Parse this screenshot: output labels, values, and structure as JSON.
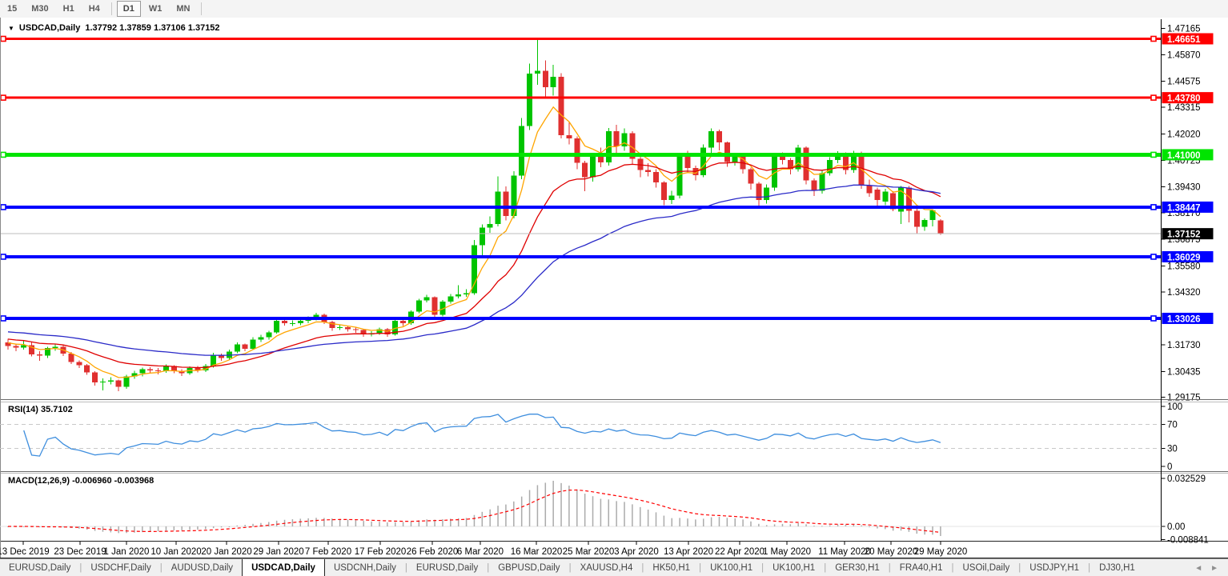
{
  "toolbar": {
    "buttons": [
      {
        "label": "15",
        "active": false
      },
      {
        "label": "M30",
        "active": false
      },
      {
        "label": "H1",
        "active": false
      },
      {
        "label": "H4",
        "active": false
      },
      {
        "label": "D1",
        "active": true
      },
      {
        "label": "W1",
        "active": false
      },
      {
        "label": "MN",
        "active": false
      }
    ]
  },
  "chart_header": {
    "dropdown_icon": "▼",
    "symbol": "USDCAD,Daily",
    "ohlc": "1.37792 1.37859 1.37106 1.37152"
  },
  "rsi_panel_label": "RSI(14) 35.7102",
  "macd_panel_label": "MACD(12,26,9) -0.006960 -0.003968",
  "tabs": {
    "items": [
      "EURUSD,Daily",
      "USDCHF,Daily",
      "AUDUSD,Daily",
      "USDCAD,Daily",
      "USDCNH,Daily",
      "EURUSD,Daily",
      "GBPUSD,Daily",
      "XAUUSD,H4",
      "HK50,H1",
      "UK100,H1",
      "UK100,H1",
      "GER30,H1",
      "FRA40,H1",
      "USOil,Daily",
      "USDJPY,H1",
      "DJ30,H1"
    ],
    "active_index": 3,
    "scroll_left_icon": "◄",
    "scroll_right_icon": "►"
  },
  "chart_data": {
    "type": "candlestick",
    "symbol": "USDCAD",
    "timeframe": "Daily",
    "last_bar": {
      "open": 1.37792,
      "high": 1.37859,
      "low": 1.37106,
      "close": 1.37152
    },
    "current_price": 1.37152,
    "bull_color": "#00c400",
    "bear_color": "#e03030",
    "price_line_color": "#bdbdbd",
    "y_ticks": [
      1.47165,
      1.4587,
      1.44575,
      1.43315,
      1.4202,
      1.40725,
      1.3943,
      1.3817,
      1.36875,
      1.3558,
      1.3432,
      1.3173,
      1.30435,
      1.29175
    ],
    "x_ticks": [
      {
        "label": "13 Dec 2019",
        "x": 29
      },
      {
        "label": "23 Dec 2019",
        "x": 100
      },
      {
        "label": "1 Jan 2020",
        "x": 158
      },
      {
        "label": "10 Jan 2020",
        "x": 220
      },
      {
        "label": "20 Jan 2020",
        "x": 283
      },
      {
        "label": "29 Jan 2020",
        "x": 348
      },
      {
        "label": "7 Feb 2020",
        "x": 410
      },
      {
        "label": "17 Feb 2020",
        "x": 475
      },
      {
        "label": "26 Feb 2020",
        "x": 540
      },
      {
        "label": "6 Mar 2020",
        "x": 600
      },
      {
        "label": "16 Mar 2020",
        "x": 670
      },
      {
        "label": "25 Mar 2020",
        "x": 735
      },
      {
        "label": "3 Apr 2020",
        "x": 795
      },
      {
        "label": "13 Apr 2020",
        "x": 860
      },
      {
        "label": "22 Apr 2020",
        "x": 924
      },
      {
        "label": "1 May 2020",
        "x": 983
      },
      {
        "label": "11 May 2020",
        "x": 1055
      },
      {
        "label": "20 May 2020",
        "x": 1113
      },
      {
        "label": "29 May 2020",
        "x": 1175
      }
    ],
    "hlines": [
      {
        "value": 1.46651,
        "color": "#ff0000",
        "width": 3
      },
      {
        "value": 1.4378,
        "color": "#ff0000",
        "width": 3
      },
      {
        "value": 1.41,
        "color": "#00e400",
        "width": 5
      },
      {
        "value": 1.38447,
        "color": "#0000ff",
        "width": 4
      },
      {
        "value": 1.36029,
        "color": "#0000ff",
        "width": 4
      },
      {
        "value": 1.33026,
        "color": "#0000ff",
        "width": 4
      }
    ],
    "moving_averages": [
      {
        "name": "fast",
        "period": 6,
        "seed": 1.319,
        "color": "#ffa500"
      },
      {
        "name": "medium",
        "period": 19,
        "seed": 1.3205,
        "color": "#df0000"
      },
      {
        "name": "slow",
        "period": 48,
        "seed": 1.324,
        "color": "#2a2ac8"
      }
    ],
    "candles": [
      [
        1.3185,
        1.3204,
        1.3151,
        1.3168
      ],
      [
        1.3168,
        1.318,
        1.3143,
        1.316
      ],
      [
        1.316,
        1.3197,
        1.315,
        1.3172
      ],
      [
        1.3172,
        1.3186,
        1.3118,
        1.3128
      ],
      [
        1.3128,
        1.3143,
        1.3095,
        1.3122
      ],
      [
        1.3122,
        1.3165,
        1.311,
        1.3158
      ],
      [
        1.3158,
        1.318,
        1.3145,
        1.3165
      ],
      [
        1.3165,
        1.3172,
        1.312,
        1.313
      ],
      [
        1.313,
        1.3138,
        1.308,
        1.309
      ],
      [
        1.309,
        1.3098,
        1.306,
        1.3075
      ],
      [
        1.3075,
        1.308,
        1.3028,
        1.304
      ],
      [
        1.304,
        1.3045,
        1.2975,
        1.299
      ],
      [
        1.299,
        1.301,
        1.2952,
        1.2995
      ],
      [
        1.2995,
        1.3015,
        1.298,
        1.3
      ],
      [
        1.3,
        1.3005,
        1.2948,
        1.297
      ],
      [
        1.297,
        1.3028,
        1.296,
        1.302
      ],
      [
        1.302,
        1.3048,
        1.3008,
        1.3035
      ],
      [
        1.3035,
        1.3062,
        1.302,
        1.3055
      ],
      [
        1.3055,
        1.3065,
        1.3036,
        1.305
      ],
      [
        1.305,
        1.306,
        1.303,
        1.3045
      ],
      [
        1.3045,
        1.3078,
        1.3038,
        1.307
      ],
      [
        1.307,
        1.3075,
        1.3035,
        1.3045
      ],
      [
        1.3045,
        1.3055,
        1.3022,
        1.3035
      ],
      [
        1.3035,
        1.3068,
        1.3028,
        1.306
      ],
      [
        1.306,
        1.307,
        1.304,
        1.305
      ],
      [
        1.305,
        1.308,
        1.3042,
        1.307
      ],
      [
        1.307,
        1.3135,
        1.3063,
        1.3125
      ],
      [
        1.3125,
        1.313,
        1.3095,
        1.311
      ],
      [
        1.311,
        1.315,
        1.3102,
        1.314
      ],
      [
        1.314,
        1.3185,
        1.3132,
        1.3175
      ],
      [
        1.3175,
        1.318,
        1.3142,
        1.3155
      ],
      [
        1.3155,
        1.321,
        1.3148,
        1.32
      ],
      [
        1.32,
        1.3222,
        1.3188,
        1.321
      ],
      [
        1.321,
        1.3242,
        1.32,
        1.3235
      ],
      [
        1.3235,
        1.3298,
        1.3228,
        1.329
      ],
      [
        1.329,
        1.3302,
        1.3268,
        1.328
      ],
      [
        1.328,
        1.3292,
        1.3266,
        1.328
      ],
      [
        1.328,
        1.33,
        1.327,
        1.329
      ],
      [
        1.329,
        1.3312,
        1.328,
        1.33
      ],
      [
        1.33,
        1.333,
        1.3292,
        1.332
      ],
      [
        1.332,
        1.3325,
        1.3275,
        1.3285
      ],
      [
        1.3285,
        1.329,
        1.3242,
        1.3255
      ],
      [
        1.3255,
        1.3272,
        1.3245,
        1.326
      ],
      [
        1.326,
        1.3268,
        1.3238,
        1.325
      ],
      [
        1.325,
        1.3262,
        1.3232,
        1.3245
      ],
      [
        1.3245,
        1.325,
        1.3212,
        1.3225
      ],
      [
        1.3225,
        1.324,
        1.3215,
        1.323
      ],
      [
        1.323,
        1.3258,
        1.3222,
        1.325
      ],
      [
        1.325,
        1.3255,
        1.3212,
        1.3225
      ],
      [
        1.3225,
        1.3298,
        1.3218,
        1.329
      ],
      [
        1.329,
        1.33,
        1.3265,
        1.328
      ],
      [
        1.328,
        1.3342,
        1.3272,
        1.3335
      ],
      [
        1.3335,
        1.3398,
        1.3328,
        1.339
      ],
      [
        1.339,
        1.3418,
        1.338,
        1.3405
      ],
      [
        1.3405,
        1.341,
        1.3305,
        1.332
      ],
      [
        1.332,
        1.3392,
        1.3312,
        1.3385
      ],
      [
        1.3385,
        1.3422,
        1.3375,
        1.341
      ],
      [
        1.341,
        1.3465,
        1.34,
        1.342
      ],
      [
        1.342,
        1.3445,
        1.3408,
        1.3425
      ],
      [
        1.3425,
        1.3685,
        1.3418,
        1.366
      ],
      [
        1.366,
        1.376,
        1.3605,
        1.3745
      ],
      [
        1.3745,
        1.38,
        1.372,
        1.3762
      ],
      [
        1.3762,
        1.3995,
        1.375,
        1.392
      ],
      [
        1.392,
        1.3945,
        1.378,
        1.3802
      ],
      [
        1.3802,
        1.402,
        1.379,
        1.3998
      ],
      [
        1.3998,
        1.428,
        1.398,
        1.424
      ],
      [
        1.424,
        1.4545,
        1.422,
        1.4496
      ],
      [
        1.4496,
        1.4668,
        1.444,
        1.451
      ],
      [
        1.451,
        1.456,
        1.438,
        1.443
      ],
      [
        1.443,
        1.4538,
        1.4388,
        1.448
      ],
      [
        1.448,
        1.4498,
        1.418,
        1.4196
      ],
      [
        1.4196,
        1.4258,
        1.415,
        1.418
      ],
      [
        1.418,
        1.419,
        1.403,
        1.406
      ],
      [
        1.406,
        1.407,
        1.3922,
        1.399
      ],
      [
        1.399,
        1.4105,
        1.397,
        1.409
      ],
      [
        1.409,
        1.4135,
        1.404,
        1.4062
      ],
      [
        1.4062,
        1.423,
        1.4048,
        1.4215
      ],
      [
        1.4215,
        1.4245,
        1.4108,
        1.414
      ],
      [
        1.414,
        1.4228,
        1.412,
        1.4205
      ],
      [
        1.4205,
        1.4215,
        1.4055,
        1.408
      ],
      [
        1.408,
        1.4098,
        1.399,
        1.4025
      ],
      [
        1.4025,
        1.4058,
        1.3995,
        1.4015
      ],
      [
        1.4015,
        1.403,
        1.394,
        1.3965
      ],
      [
        1.3965,
        1.3972,
        1.3855,
        1.388
      ],
      [
        1.388,
        1.3925,
        1.386,
        1.39
      ],
      [
        1.39,
        1.4102,
        1.3888,
        1.409
      ],
      [
        1.409,
        1.412,
        1.401,
        1.4035
      ],
      [
        1.4035,
        1.4048,
        1.3975,
        1.4
      ],
      [
        1.4,
        1.415,
        1.399,
        1.4135
      ],
      [
        1.4135,
        1.4228,
        1.411,
        1.4215
      ],
      [
        1.4215,
        1.4222,
        1.4122,
        1.416
      ],
      [
        1.416,
        1.4165,
        1.4042,
        1.4065
      ],
      [
        1.4065,
        1.411,
        1.4048,
        1.4095
      ],
      [
        1.4095,
        1.4105,
        1.4008,
        1.403
      ],
      [
        1.403,
        1.4038,
        1.393,
        1.396
      ],
      [
        1.396,
        1.3968,
        1.385,
        1.388
      ],
      [
        1.388,
        1.3955,
        1.3862,
        1.394
      ],
      [
        1.394,
        1.4102,
        1.3925,
        1.409
      ],
      [
        1.409,
        1.4112,
        1.4052,
        1.4075
      ],
      [
        1.4075,
        1.4085,
        1.4005,
        1.403
      ],
      [
        1.403,
        1.4148,
        1.4018,
        1.4135
      ],
      [
        1.4135,
        1.414,
        1.3955,
        1.3975
      ],
      [
        1.3975,
        1.3985,
        1.3898,
        1.3925
      ],
      [
        1.3925,
        1.4022,
        1.391,
        1.401
      ],
      [
        1.401,
        1.4088,
        1.3998,
        1.4075
      ],
      [
        1.4075,
        1.4118,
        1.4058,
        1.4105
      ],
      [
        1.4105,
        1.4112,
        1.4005,
        1.4025
      ],
      [
        1.4025,
        1.412,
        1.4012,
        1.411
      ],
      [
        1.411,
        1.4115,
        1.3935,
        1.395
      ],
      [
        1.395,
        1.3978,
        1.3895,
        1.3912
      ],
      [
        1.393,
        1.394,
        1.3852,
        1.388
      ],
      [
        1.3872,
        1.3935,
        1.3855,
        1.392
      ],
      [
        1.3912,
        1.3922,
        1.3824,
        1.3835
      ],
      [
        1.3822,
        1.3947,
        1.3763,
        1.394
      ],
      [
        1.394,
        1.3948,
        1.377,
        1.3826
      ],
      [
        1.3826,
        1.3836,
        1.3714,
        1.3748
      ],
      [
        1.3748,
        1.379,
        1.373,
        1.3782
      ],
      [
        1.3782,
        1.3835,
        1.375,
        1.3828
      ],
      [
        1.37792,
        1.37859,
        1.37106,
        1.37152
      ]
    ],
    "rsi": {
      "title": "RSI(14) 35.7102",
      "period": 14,
      "value": 35.7102,
      "levels": [
        70,
        30
      ],
      "ticks": [
        100,
        70,
        30,
        0
      ],
      "range": [
        0,
        100
      ],
      "color": "#3e8ede",
      "level_color": "#c9c9c9"
    },
    "macd": {
      "title": "MACD(12,26,9) -0.006960 -0.003968",
      "fast": 12,
      "slow": 26,
      "signal_period": 9,
      "value": -0.00696,
      "signal_value": -0.003968,
      "ticks": [
        0.032529,
        0.0,
        -0.008841
      ],
      "range": [
        -0.0105,
        0.0345
      ],
      "hist_color": "#ababab",
      "signal_color": "#ff0000"
    }
  }
}
